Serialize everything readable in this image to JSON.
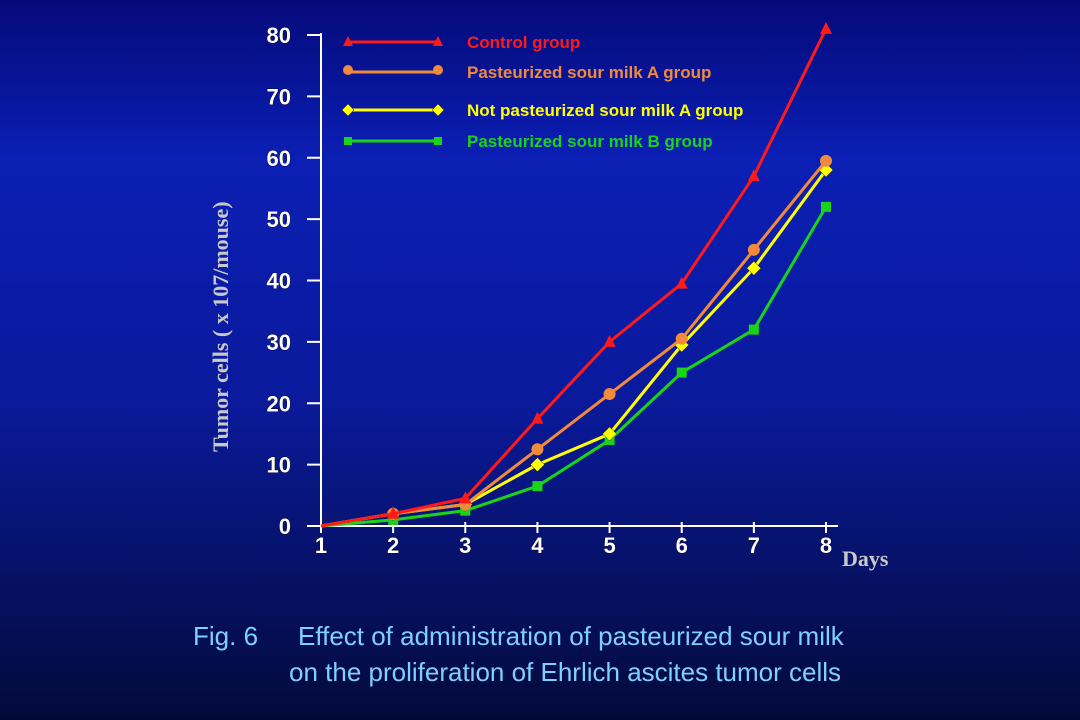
{
  "chart_data": {
    "type": "line",
    "x": [
      1,
      2,
      3,
      4,
      5,
      6,
      7,
      8
    ],
    "xlabel": "Days",
    "ylabel": "Tumor cells ( x 107/mouse)",
    "ylim": [
      0,
      80
    ],
    "yticks": [
      0,
      10,
      20,
      30,
      40,
      50,
      60,
      70,
      80
    ],
    "grid": false,
    "legend_position": "top-left",
    "series": [
      {
        "name": "Control group",
        "color": "#ff1a1a",
        "marker": "triangle",
        "x": [
          1,
          2,
          3,
          4,
          5,
          6,
          7,
          8
        ],
        "values": [
          0,
          2,
          4.5,
          17.5,
          30,
          39.5,
          57,
          81
        ]
      },
      {
        "name": "Pasteurized sour milk A group",
        "color": "#f08a3c",
        "marker": "circle",
        "x": [
          1,
          2,
          3,
          4,
          5,
          6,
          7,
          8
        ],
        "values": [
          0,
          2,
          3.5,
          12.5,
          21.5,
          30.5,
          45,
          59.5
        ]
      },
      {
        "name": "Not pasteurized sour milk A group",
        "color": "#ffff00",
        "marker": "diamond",
        "x": [
          1,
          2,
          3,
          4,
          5,
          6,
          7,
          8
        ],
        "values": [
          0,
          2,
          3.5,
          10,
          15,
          29.5,
          42,
          58
        ]
      },
      {
        "name": "Pasteurized sour milk B group",
        "color": "#19d419",
        "marker": "square",
        "x": [
          1,
          2,
          3,
          4,
          5,
          6,
          7,
          8
        ],
        "values": [
          0,
          1,
          2.5,
          6.5,
          14,
          25,
          32,
          52
        ]
      }
    ]
  },
  "caption": {
    "fig_label": "Fig. 6",
    "line1": "Effect of administration of pasteurized sour milk",
    "line2": "on the proliferation of Ehrlich ascites tumor cells"
  }
}
